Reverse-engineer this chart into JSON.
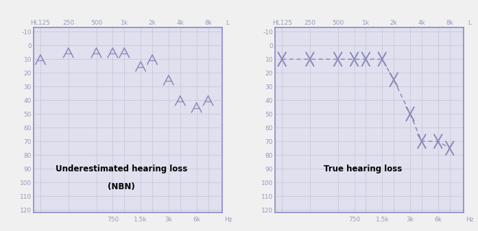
{
  "fig_width": 6.97,
  "fig_height": 3.37,
  "dpi": 100,
  "bg_color": "#f0f0f0",
  "plot_bg_color": "#e0e0ee",
  "border_color": "#8888cc",
  "line_color": "#8888bb",
  "label_color": "#9999bb",
  "grid_color": "#c8c8dc",
  "marker_color": "#8888bb",
  "hl_ticks": [
    -10,
    0,
    10,
    20,
    30,
    40,
    50,
    60,
    70,
    80,
    90,
    100,
    110,
    120
  ],
  "top_tick_labels": [
    "HL125",
    "250",
    "500",
    "1k",
    "2k",
    "4k",
    "8k"
  ],
  "bot_tick_labels": [
    "750",
    "1.5k",
    "3k",
    "6k"
  ],
  "nbn_freqs": [
    125,
    250,
    500,
    750,
    1000,
    1500,
    2000,
    3000,
    4000,
    6000,
    8000
  ],
  "nbn_hl": [
    10,
    5,
    5,
    5,
    5,
    15,
    10,
    25,
    40,
    45,
    40
  ],
  "pt_freqs": [
    125,
    250,
    500,
    750,
    1000,
    1500,
    2000,
    3000,
    4000,
    6000,
    8000
  ],
  "pt_hl": [
    10,
    10,
    10,
    10,
    10,
    10,
    25,
    50,
    70,
    70,
    75
  ],
  "label1_line1": "Underestimated hearing loss",
  "label1_line2": "(NBN)",
  "label2": "True hearing loss"
}
